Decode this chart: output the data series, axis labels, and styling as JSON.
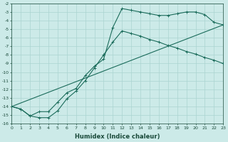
{
  "xlabel": "Humidex (Indice chaleur)",
  "bg_color": "#cceae8",
  "grid_color": "#aad4d0",
  "line_color": "#1a6b5a",
  "xlim": [
    0,
    23
  ],
  "ylim": [
    -16,
    -2
  ],
  "xticks": [
    0,
    1,
    2,
    3,
    4,
    5,
    6,
    7,
    8,
    9,
    10,
    11,
    12,
    13,
    14,
    15,
    16,
    17,
    18,
    19,
    20,
    21,
    22,
    23
  ],
  "yticks": [
    -2,
    -3,
    -4,
    -5,
    -6,
    -7,
    -8,
    -9,
    -10,
    -11,
    -12,
    -13,
    -14,
    -15,
    -16
  ],
  "line1_x": [
    0,
    1,
    2,
    3,
    4,
    5,
    6,
    7,
    8,
    9,
    10,
    11,
    12,
    13,
    14,
    15,
    16,
    17,
    18,
    19,
    20,
    21,
    22,
    23
  ],
  "line1_y": [
    -14.0,
    -14.3,
    -15.1,
    -14.6,
    -14.6,
    -13.5,
    -12.4,
    -11.9,
    -10.4,
    -9.3,
    -8.5,
    -4.8,
    -2.6,
    -2.8,
    -3.0,
    -3.2,
    -3.4,
    -3.4,
    -3.2,
    -3.0,
    -3.0,
    -3.3,
    -4.2,
    -4.5
  ],
  "line2_x": [
    0,
    1,
    2,
    3,
    4,
    5,
    6,
    7,
    8,
    9,
    10,
    11,
    12,
    13,
    14,
    15,
    16,
    17,
    18,
    19,
    20,
    21,
    22,
    23
  ],
  "line2_y": [
    -14.0,
    -14.3,
    -15.1,
    -15.3,
    -15.3,
    -14.5,
    -13.1,
    -12.2,
    -11.0,
    -9.5,
    -8.0,
    -6.5,
    -5.2,
    -5.5,
    -5.8,
    -6.2,
    -6.5,
    -6.9,
    -7.2,
    -7.6,
    -7.9,
    -8.3,
    -8.6,
    -9.0
  ],
  "line3_x": [
    0,
    23
  ],
  "line3_y": [
    -14.0,
    -4.5
  ]
}
